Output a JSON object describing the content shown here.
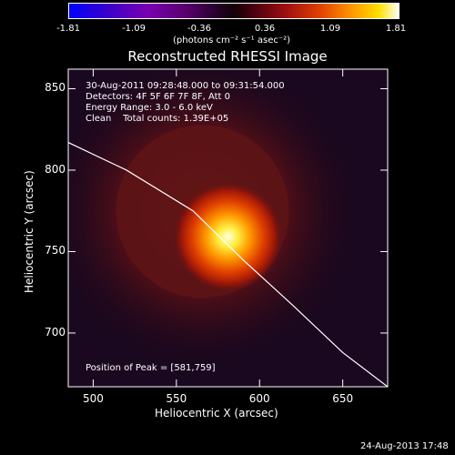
{
  "colorbar": {
    "ticks": [
      "-1.81",
      "-1.09",
      "-0.36",
      "0.36",
      "1.09",
      "1.81"
    ],
    "unit_label": "(photons cm⁻² s⁻¹ asec⁻²)"
  },
  "chart_data": {
    "type": "heatmap",
    "title": "Reconstructed RHESSI Image",
    "xlabel": "Heliocentric X (arcsec)",
    "ylabel": "Heliocentric Y (arcsec)",
    "xlim": [
      485,
      677
    ],
    "ylim": [
      667,
      862
    ],
    "x_ticks": [
      "500",
      "550",
      "600",
      "650"
    ],
    "y_ticks": [
      "850",
      "800",
      "750",
      "700"
    ],
    "x_tick_values": [
      500,
      550,
      600,
      650
    ],
    "y_tick_values": [
      850,
      800,
      750,
      700
    ],
    "peak": [
      581,
      759
    ],
    "colorbar_range": [
      -1.81,
      1.81
    ],
    "annotations": [
      "30-Aug-2011 09:28:48.000 to 09:31:54.000",
      "Detectors: 4F 5F 6F 7F 8F, Att 0",
      "Energy Range: 3.0 - 6.0 keV",
      "Clean    Total counts: 1.39E+05"
    ],
    "peak_label": "Position of Peak = [581,759]",
    "limb_curve": [
      [
        485,
        817
      ],
      [
        520,
        800
      ],
      [
        560,
        775
      ],
      [
        590,
        745
      ],
      [
        620,
        717
      ],
      [
        650,
        688
      ],
      [
        677,
        667
      ]
    ]
  },
  "timestamp": "24-Aug-2013 17:48"
}
